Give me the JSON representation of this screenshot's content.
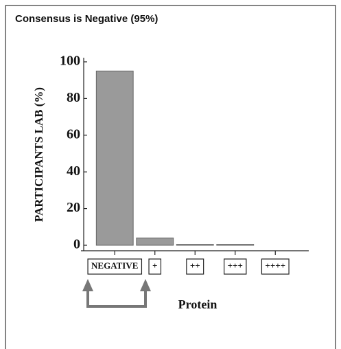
{
  "chart_data": {
    "type": "bar",
    "title": "Consensus is Negative (95%)",
    "ylabel": "PARTICIPANTS LAB (%)",
    "xlabel": "Protein",
    "categories": [
      "NEGATIVE",
      "+",
      "++",
      "+++",
      "++++"
    ],
    "values": [
      95,
      4,
      0.5,
      0.5,
      0
    ],
    "color": "#9a9a9a",
    "ylim": [
      0,
      100
    ],
    "yticks": [
      0,
      20,
      40,
      60,
      80,
      100
    ],
    "grid": false
  }
}
